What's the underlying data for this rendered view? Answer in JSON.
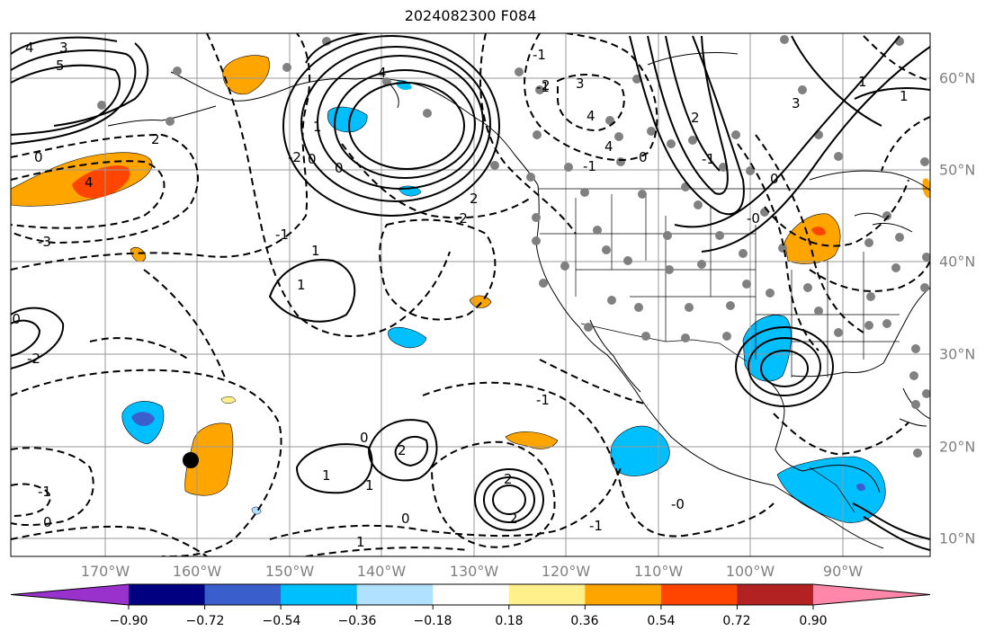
{
  "title": "2024082300 F084",
  "lon_labels": [
    "170°W",
    "160°W",
    "150°W",
    "140°W",
    "130°W",
    "120°W",
    "110°W",
    "100°W",
    "90°W"
  ],
  "lat_labels": [
    "60°N",
    "50°N",
    "40°N",
    "30°N",
    "20°N",
    "10°N"
  ],
  "contour_labels": [
    "4",
    "3",
    "5",
    "2",
    "0",
    "4",
    "-3",
    "-2",
    "-1",
    "0",
    "1",
    "0",
    "-0",
    "4",
    "-2",
    "2",
    "1",
    "-2",
    "1",
    "1",
    "0",
    "-1",
    "0",
    "1",
    "2",
    "1",
    "2",
    "2",
    "0",
    "-1",
    "-1",
    "-0",
    "-1",
    "-1",
    "2",
    "3",
    "4",
    "4",
    "3",
    "0",
    "2",
    "1",
    "1",
    "-1",
    "0",
    "-0",
    "-1"
  ],
  "colorbar": {
    "ticks": [
      "−0.90",
      "−0.72",
      "−0.54",
      "−0.36",
      "−0.18",
      "0.18",
      "0.36",
      "0.54",
      "0.72",
      "0.90"
    ],
    "colors": [
      "#9932cc",
      "#000080",
      "#3a5fcd",
      "#00bfff",
      "#b0e2ff",
      "#ffffff",
      "#fff08c",
      "#ffa500",
      "#ff4500",
      "#b22222",
      "#ff88aa"
    ]
  }
}
